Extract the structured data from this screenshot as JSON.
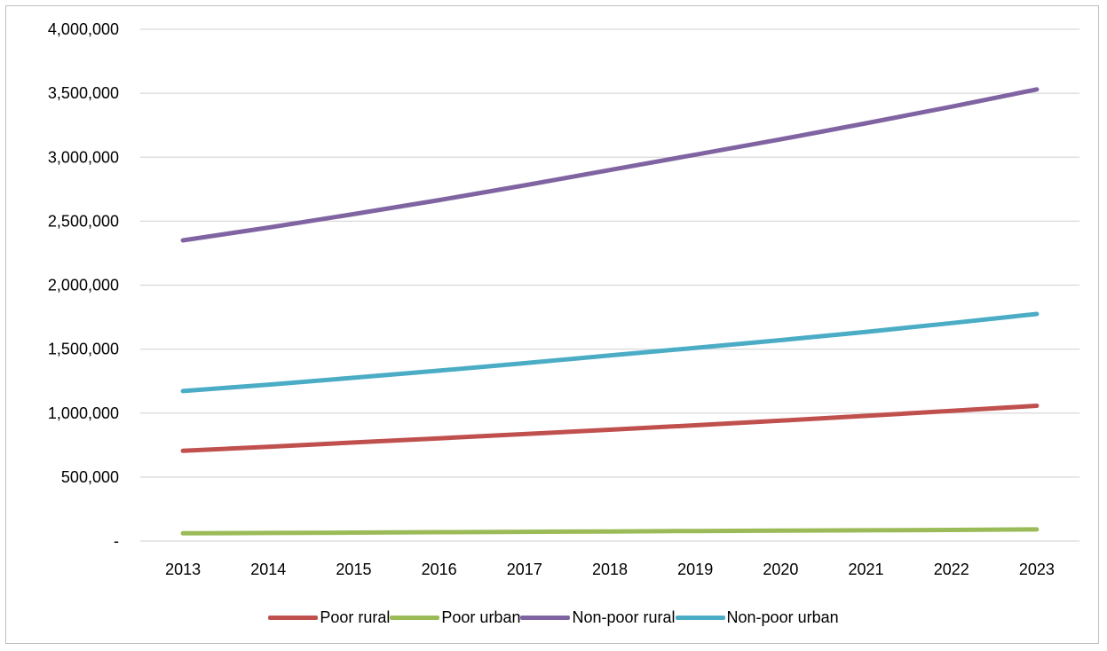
{
  "chart_data": {
    "type": "line",
    "title": "",
    "xlabel": "",
    "ylabel": "",
    "x": [
      "2013",
      "2014",
      "2015",
      "2016",
      "2017",
      "2018",
      "2019",
      "2020",
      "2021",
      "2022",
      "2023"
    ],
    "ylim": [
      0,
      4000000
    ],
    "y_ticks": [
      0,
      500000,
      1000000,
      1500000,
      2000000,
      2500000,
      3000000,
      3500000,
      4000000
    ],
    "y_tick_labels": [
      "-",
      "500,000",
      "1,000,000",
      "1,500,000",
      "2,000,000",
      "2,500,000",
      "3,000,000",
      "3,500,000",
      "4,000,000"
    ],
    "grid": true,
    "legend_position": "bottom",
    "series": [
      {
        "name": "Poor rural",
        "color": "#c0504d",
        "values": [
          705000,
          737000,
          770000,
          803000,
          836000,
          870000,
          905000,
          941000,
          978000,
          1017000,
          1057000
        ]
      },
      {
        "name": "Poor urban",
        "color": "#9bbb59",
        "values": [
          60000,
          63000,
          66000,
          69000,
          72000,
          75000,
          78000,
          81000,
          84000,
          87000,
          91000
        ]
      },
      {
        "name": "Non-poor rural",
        "color": "#8064a2",
        "values": [
          2350000,
          2450000,
          2555000,
          2665000,
          2780000,
          2900000,
          3020000,
          3140000,
          3265000,
          3395000,
          3530000
        ]
      },
      {
        "name": "Non-poor urban",
        "color": "#4bacc6",
        "values": [
          1172000,
          1222000,
          1276000,
          1332000,
          1390000,
          1450000,
          1510000,
          1570000,
          1635000,
          1703000,
          1775000
        ]
      }
    ]
  }
}
